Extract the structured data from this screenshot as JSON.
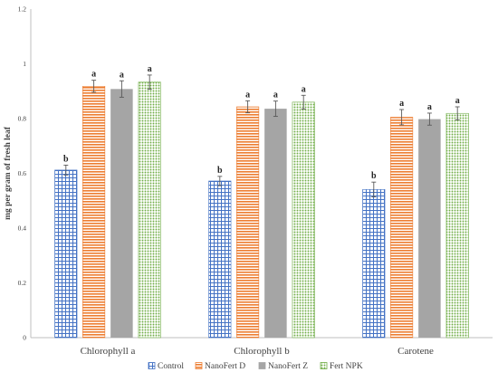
{
  "chart_data": {
    "type": "bar",
    "ylabel": "mg per gram of fresh leaf",
    "xlabel": "",
    "ylim": [
      0,
      1.2
    ],
    "yticks": [
      "0",
      "0.2",
      "0.4",
      "0.6",
      "0.8",
      "1",
      "1.2"
    ],
    "grid": false,
    "legend_position": "bottom",
    "categories": [
      "Chlorophyll a",
      "Chlorophyll b",
      "Carotene"
    ],
    "series": [
      {
        "name": "Control",
        "color": "#4472C4",
        "pattern": "grid",
        "values": [
          0.612,
          0.572,
          0.541
        ],
        "errors": [
          0.018,
          0.017,
          0.027
        ],
        "letters": [
          "b",
          "b",
          "b"
        ]
      },
      {
        "name": "NanoFert D",
        "color": "#ED7D31",
        "pattern": "horizontal-lines",
        "values": [
          0.918,
          0.843,
          0.805
        ],
        "errors": [
          0.022,
          0.022,
          0.028
        ],
        "letters": [
          "a",
          "a",
          "a"
        ]
      },
      {
        "name": "NanoFert Z",
        "color": "#A5A5A5",
        "pattern": "solid",
        "values": [
          0.908,
          0.836,
          0.798
        ],
        "errors": [
          0.03,
          0.028,
          0.022
        ],
        "letters": [
          "a",
          "a",
          "a"
        ]
      },
      {
        "name": "Fert NPK",
        "color": "#70AD47",
        "pattern": "dots",
        "values": [
          0.933,
          0.86,
          0.819
        ],
        "errors": [
          0.026,
          0.025,
          0.024
        ],
        "letters": [
          "a",
          "a",
          "a"
        ]
      }
    ]
  }
}
